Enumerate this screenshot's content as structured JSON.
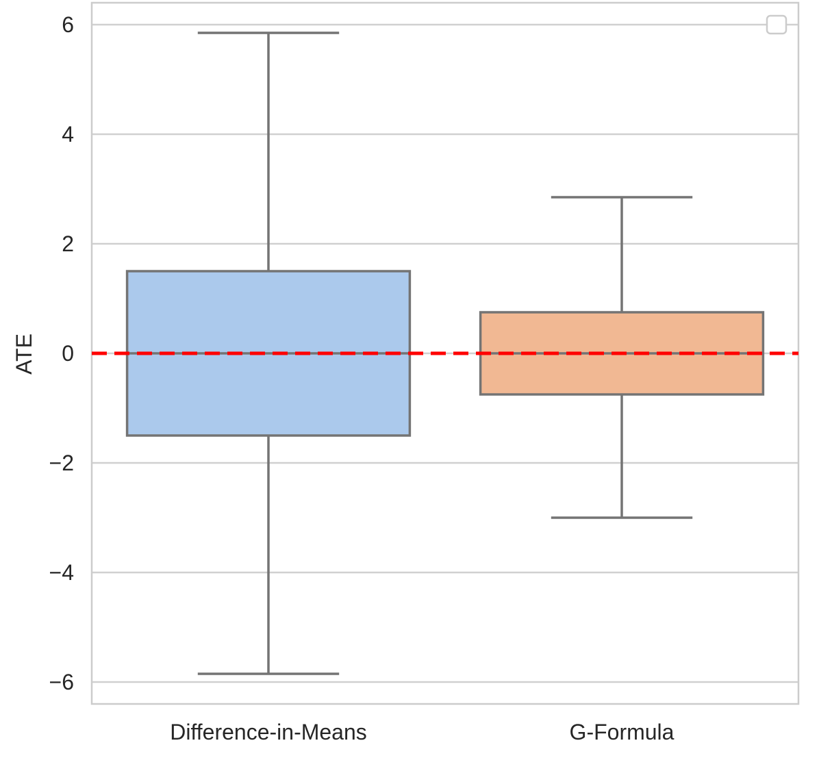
{
  "chart_data": {
    "type": "box",
    "title": "",
    "xlabel": "",
    "ylabel": "ATE",
    "ylim": [
      -6.4,
      6.4
    ],
    "yticks": [
      6,
      4,
      2,
      0,
      -2,
      -4,
      -6
    ],
    "ytick_labels": [
      "6",
      "4",
      "2",
      "0",
      "−2",
      "−4",
      "−6"
    ],
    "grid": true,
    "legend": {
      "placement": "top-right",
      "entries": []
    },
    "reference_line": {
      "y": 0,
      "color": "#ff0000",
      "style": "dashed"
    },
    "categories": [
      "Difference-in-Means",
      "G-Formula"
    ],
    "boxes": [
      {
        "name": "Difference-in-Means",
        "whisker_low": -5.85,
        "q1": -1.5,
        "median": 0.0,
        "q3": 1.5,
        "whisker_high": 5.85,
        "color": "#abc9ec"
      },
      {
        "name": "G-Formula",
        "whisker_low": -3.0,
        "q1": -0.75,
        "median": 0.0,
        "q3": 0.75,
        "whisker_high": 2.85,
        "color": "#f1b893"
      }
    ]
  }
}
